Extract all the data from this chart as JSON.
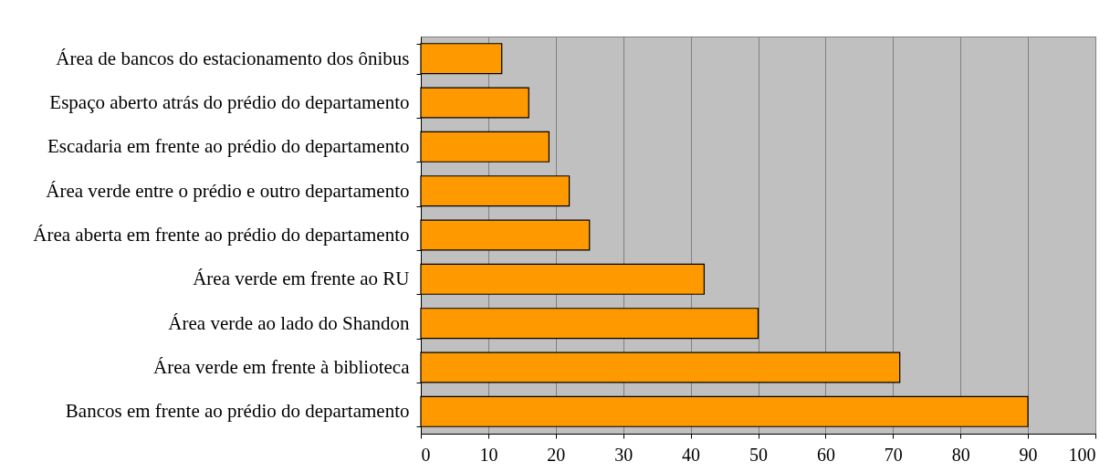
{
  "chart_data": {
    "type": "bar",
    "orientation": "horizontal",
    "categories": [
      "Área de bancos do estacionamento dos ônibus",
      "Espaço aberto atrás do prédio do departamento",
      "Escadaria em frente ao prédio do departamento",
      "Área verde entre o prédio e outro departamento",
      "Área aberta em frente ao prédio do departamento",
      "Área verde em frente ao RU",
      "Área verde ao lado do Shandon",
      "Área verde em frente à biblioteca",
      "Bancos em frente ao prédio do departamento"
    ],
    "values": [
      12,
      16,
      19,
      22,
      25,
      42,
      50,
      71,
      90
    ],
    "color": "#ff9900",
    "xlim": [
      0,
      100
    ],
    "xticks": [
      0,
      10,
      20,
      30,
      40,
      50,
      60,
      70,
      80,
      90,
      100
    ],
    "grid": "x"
  }
}
